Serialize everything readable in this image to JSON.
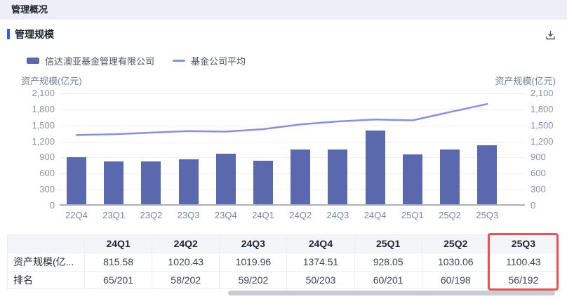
{
  "page_header": {
    "title": "管理概况"
  },
  "section": {
    "title": "管理规模"
  },
  "toolbar": {
    "download_icon": "download"
  },
  "chart_data": {
    "type": "bar",
    "title": "管理规模",
    "categories": [
      "22Q4",
      "23Q1",
      "23Q2",
      "23Q3",
      "23Q4",
      "24Q1",
      "24Q2",
      "24Q3",
      "24Q4",
      "25Q1",
      "25Q2",
      "25Q3"
    ],
    "series": [
      {
        "name": "信达澳亚基金管理有限公司",
        "type": "bar",
        "color": "#5A68AE",
        "values": [
          880,
          800,
          805,
          835,
          945,
          815.58,
          1020.43,
          1019.96,
          1374.51,
          928.05,
          1030.06,
          1100.43
        ]
      },
      {
        "name": "基金公司平均",
        "type": "line",
        "color": "#8490E8",
        "values": [
          1320,
          1335,
          1365,
          1395,
          1385,
          1430,
          1520,
          1575,
          1610,
          1595,
          1750,
          1900
        ]
      }
    ],
    "ylabel_left": "资产规模(亿元)",
    "ylabel_right": "资产规模(亿元)",
    "ytick_labels": [
      "0",
      "300",
      "600",
      "900",
      "1,200",
      "1,500",
      "1,800",
      "2,100"
    ],
    "ytick_values": [
      0,
      300,
      600,
      900,
      1200,
      1500,
      1800,
      2100
    ],
    "ylim": [
      0,
      2100
    ],
    "grid": true,
    "legend_position": "top"
  },
  "table": {
    "columns": [
      "24Q1",
      "24Q2",
      "24Q3",
      "24Q4",
      "25Q1",
      "25Q2",
      "25Q3"
    ],
    "rows": [
      {
        "label": "资产规模(亿...",
        "values": [
          "815.58",
          "1020.43",
          "1019.96",
          "1374.51",
          "928.05",
          "1030.06",
          "1100.43"
        ]
      },
      {
        "label": "排名",
        "values": [
          "65/201",
          "58/202",
          "59/202",
          "50/203",
          "60/201",
          "60/198",
          "56/192"
        ]
      }
    ],
    "highlighted_column": "25Q3",
    "highlight_color": "#F0504F"
  },
  "colors": {
    "header_strip_bg": "#EDEEF7",
    "accent": "#2F5BE7",
    "bar": "#5A68AE",
    "line": "#8490E8",
    "axis_text": "#8A8FA0",
    "scrollbar": "#C9CCD4"
  }
}
